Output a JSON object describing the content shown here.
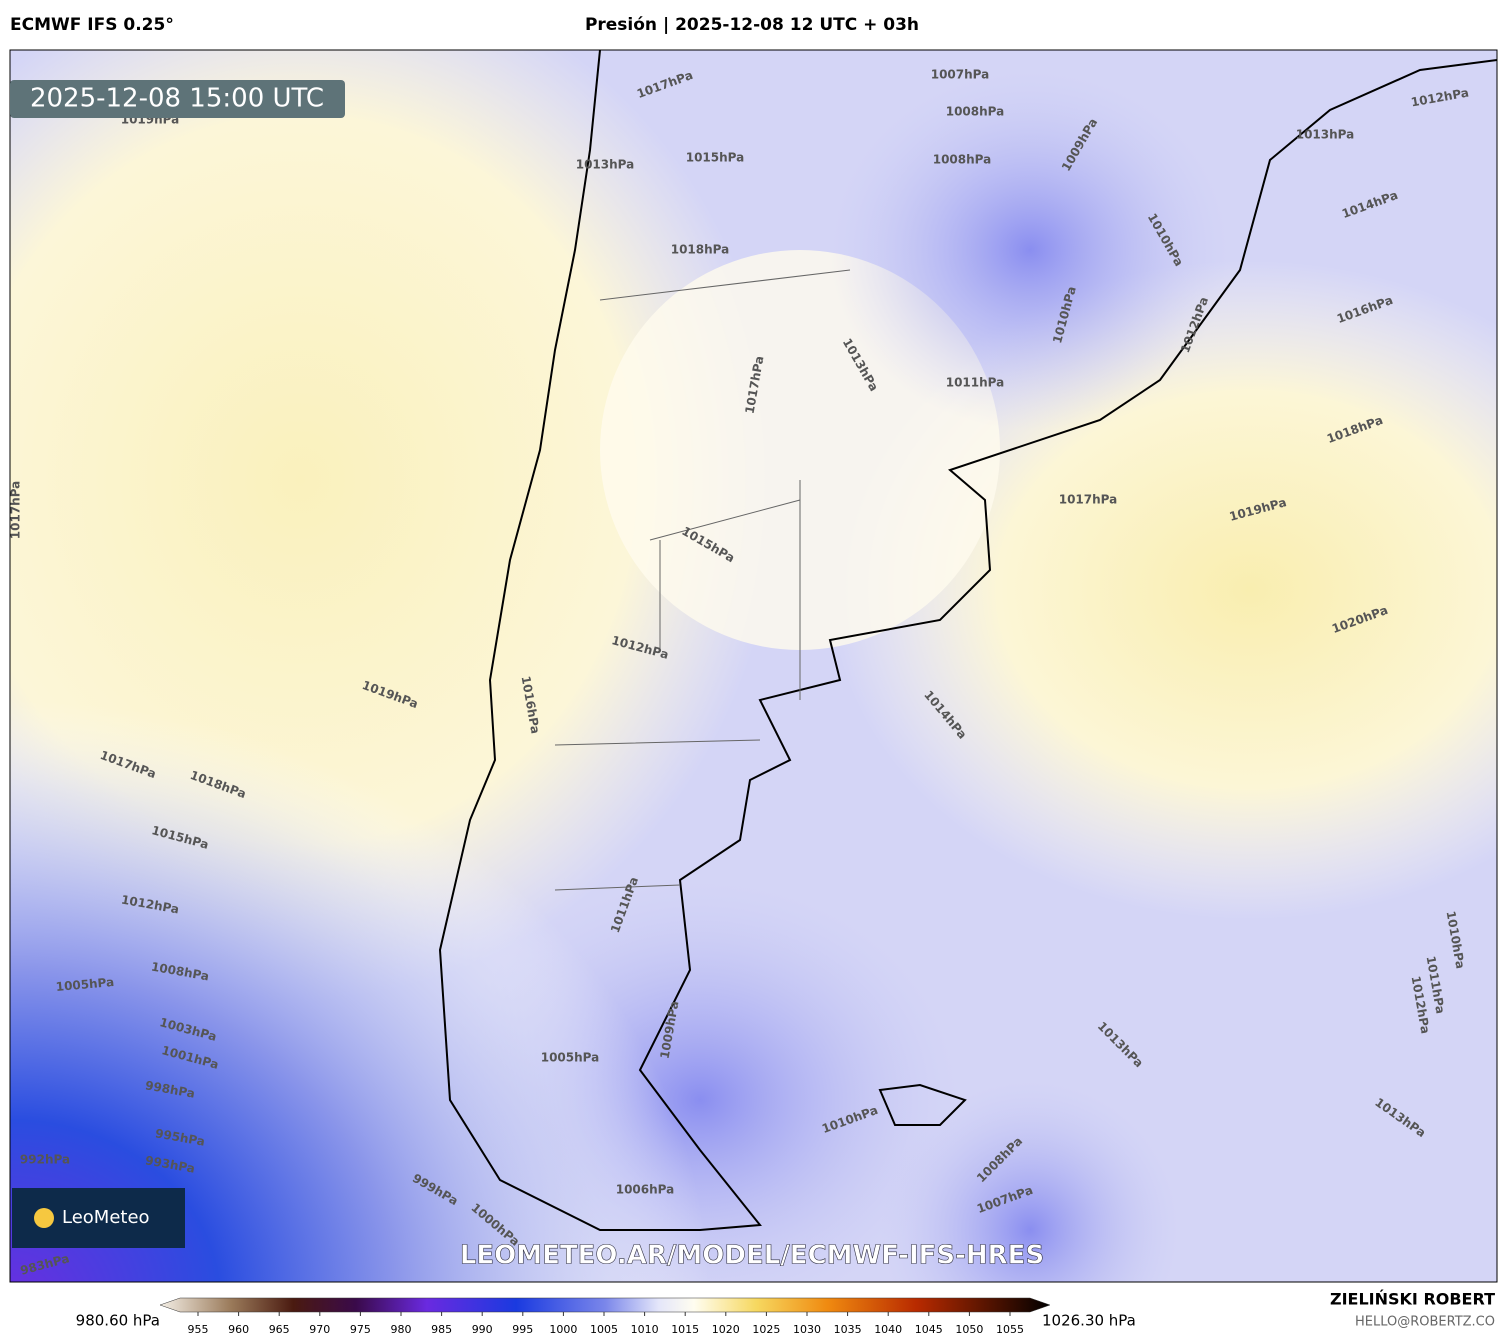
{
  "header": {
    "model": "ECMWF IFS 0.25°",
    "title": "Presión | 2025-12-08 12 UTC + 03h"
  },
  "map": {
    "timestamp": "2025-12-08 15:00 UTC",
    "watermark": "LEOMETEO.AR/MODEL/ECMWF-IFS-HRES",
    "logo": "LeoMeteo",
    "contour_labels": [
      "1019hPa",
      "1013hPa",
      "1017hPa",
      "1015hPa",
      "1018hPa",
      "1007hPa",
      "1008hPa",
      "1008hPa",
      "1009hPa",
      "1012hPa",
      "1013hPa",
      "1014hPa",
      "1010hPa",
      "1016hPa",
      "1010hPa",
      "1012hPa",
      "1013hPa",
      "1011hPa",
      "1017hPa",
      "1018hPa",
      "1017hPa",
      "1019hPa",
      "1017hPa",
      "1015hPa",
      "1020hPa",
      "1012hPa",
      "1019hPa",
      "1014hPa",
      "1016hPa",
      "1017hPa",
      "1018hPa",
      "1015hPa",
      "1012hPa",
      "1011hPa",
      "1008hPa",
      "1005hPa",
      "1010hPa",
      "1011hPa",
      "1012hPa",
      "1009hPa",
      "1013hPa",
      "1005hPa",
      "1003hPa",
      "1001hPa",
      "998hPa",
      "995hPa",
      "992hPa",
      "993hPa",
      "1010hPa",
      "1013hPa",
      "1008hPa",
      "1007hPa",
      "1006hPa",
      "999hPa",
      "1000hPa",
      "983hPa"
    ]
  },
  "colorbar": {
    "min_label": "980.60 hPa",
    "max_label": "1026.30 hPa",
    "ticks": [
      955,
      960,
      965,
      970,
      975,
      980,
      985,
      990,
      995,
      1000,
      1005,
      1010,
      1015,
      1020,
      1025,
      1030,
      1035,
      1040,
      1045,
      1050,
      1055
    ]
  },
  "footer": {
    "author": "ZIELIŃSKI ROBERT",
    "email": "HELLO@ROBERTZ.CO"
  }
}
